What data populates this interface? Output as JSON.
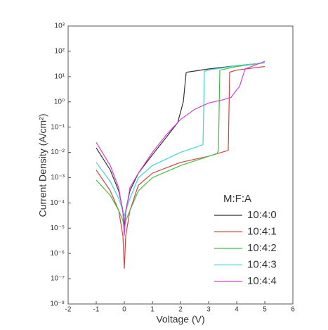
{
  "chart_data": {
    "type": "line",
    "xlabel": "Voltage (V)",
    "ylabel": "Current Density (A/cm²)",
    "xlim": [
      -2,
      6
    ],
    "xticks": [
      -2,
      -1,
      0,
      1,
      2,
      3,
      4,
      5,
      6
    ],
    "yscale": "log",
    "ylim": [
      1e-08,
      1000
    ],
    "yticks": [
      {
        "value": 1e-08,
        "label": "10⁻⁸"
      },
      {
        "value": 1e-07,
        "label": "10⁻⁷"
      },
      {
        "value": 1e-06,
        "label": "10⁻⁶"
      },
      {
        "value": 1e-05,
        "label": "10⁻⁵"
      },
      {
        "value": 0.0001,
        "label": "10⁻⁴"
      },
      {
        "value": 0.001,
        "label": "10⁻³"
      },
      {
        "value": 0.01,
        "label": "10⁻²"
      },
      {
        "value": 0.1,
        "label": "10⁻¹"
      },
      {
        "value": 1,
        "label": "10⁰"
      },
      {
        "value": 10,
        "label": "10¹"
      },
      {
        "value": 100,
        "label": "10²"
      },
      {
        "value": 1000,
        "label": "10³"
      }
    ],
    "legend_title": "M:F:A",
    "legend_position": "lower right",
    "series": [
      {
        "name": "10:4:0",
        "color": "#333333",
        "x": [
          -1,
          -0.5,
          -0.2,
          -0.05,
          0,
          0.05,
          0.2,
          0.5,
          1,
          1.5,
          1.9,
          2.1,
          2.2,
          2.25,
          3,
          4,
          5
        ],
        "values": [
          0.015,
          0.002,
          0.0003,
          5e-05,
          1e-05,
          5e-05,
          0.0003,
          0.0015,
          0.008,
          0.04,
          0.15,
          1,
          14,
          15,
          20,
          27,
          35
        ]
      },
      {
        "name": "10:4:1",
        "color": "#d9413f",
        "x": [
          -1,
          -0.5,
          -0.2,
          -0.05,
          0,
          0.05,
          0.2,
          0.5,
          1,
          2,
          3,
          3.7,
          3.75,
          4,
          5
        ],
        "values": [
          0.002,
          0.0003,
          5e-05,
          5e-06,
          2.5e-07,
          5e-06,
          5e-05,
          0.0005,
          0.0015,
          0.004,
          0.007,
          0.012,
          15,
          18,
          25
        ]
      },
      {
        "name": "10:4:2",
        "color": "#3fbf3f",
        "x": [
          -1,
          -0.5,
          -0.2,
          -0.05,
          0,
          0.05,
          0.2,
          0.5,
          1,
          2,
          3.3,
          3.35,
          3.4,
          4,
          5
        ],
        "values": [
          0.0008,
          0.0002,
          5e-05,
          2e-05,
          1e-05,
          2e-05,
          5e-05,
          0.0003,
          0.001,
          0.003,
          0.009,
          0.012,
          18,
          25,
          35
        ]
      },
      {
        "name": "10:4:3",
        "color": "#3fd8d8",
        "x": [
          -1,
          -0.5,
          -0.2,
          -0.05,
          0,
          0.05,
          0.2,
          0.5,
          1,
          2,
          2.8,
          2.85,
          3,
          4,
          5
        ],
        "values": [
          0.004,
          0.0007,
          0.00015,
          5e-05,
          3e-05,
          5e-05,
          0.00015,
          0.001,
          0.003,
          0.01,
          0.02,
          16,
          18,
          27,
          35
        ]
      },
      {
        "name": "10:4:4",
        "color": "#d63fd6",
        "x": [
          -1,
          -0.5,
          -0.2,
          -0.05,
          0,
          0.05,
          0.2,
          0.5,
          1,
          1.5,
          2,
          2.5,
          3,
          3.5,
          3.8,
          4,
          4.1,
          4.3,
          5
        ],
        "values": [
          0.025,
          0.003,
          0.0004,
          4e-05,
          5e-06,
          4e-05,
          0.0004,
          0.0015,
          0.01,
          0.05,
          0.2,
          0.5,
          0.9,
          1.2,
          1.5,
          3,
          4,
          20,
          40
        ]
      }
    ]
  }
}
